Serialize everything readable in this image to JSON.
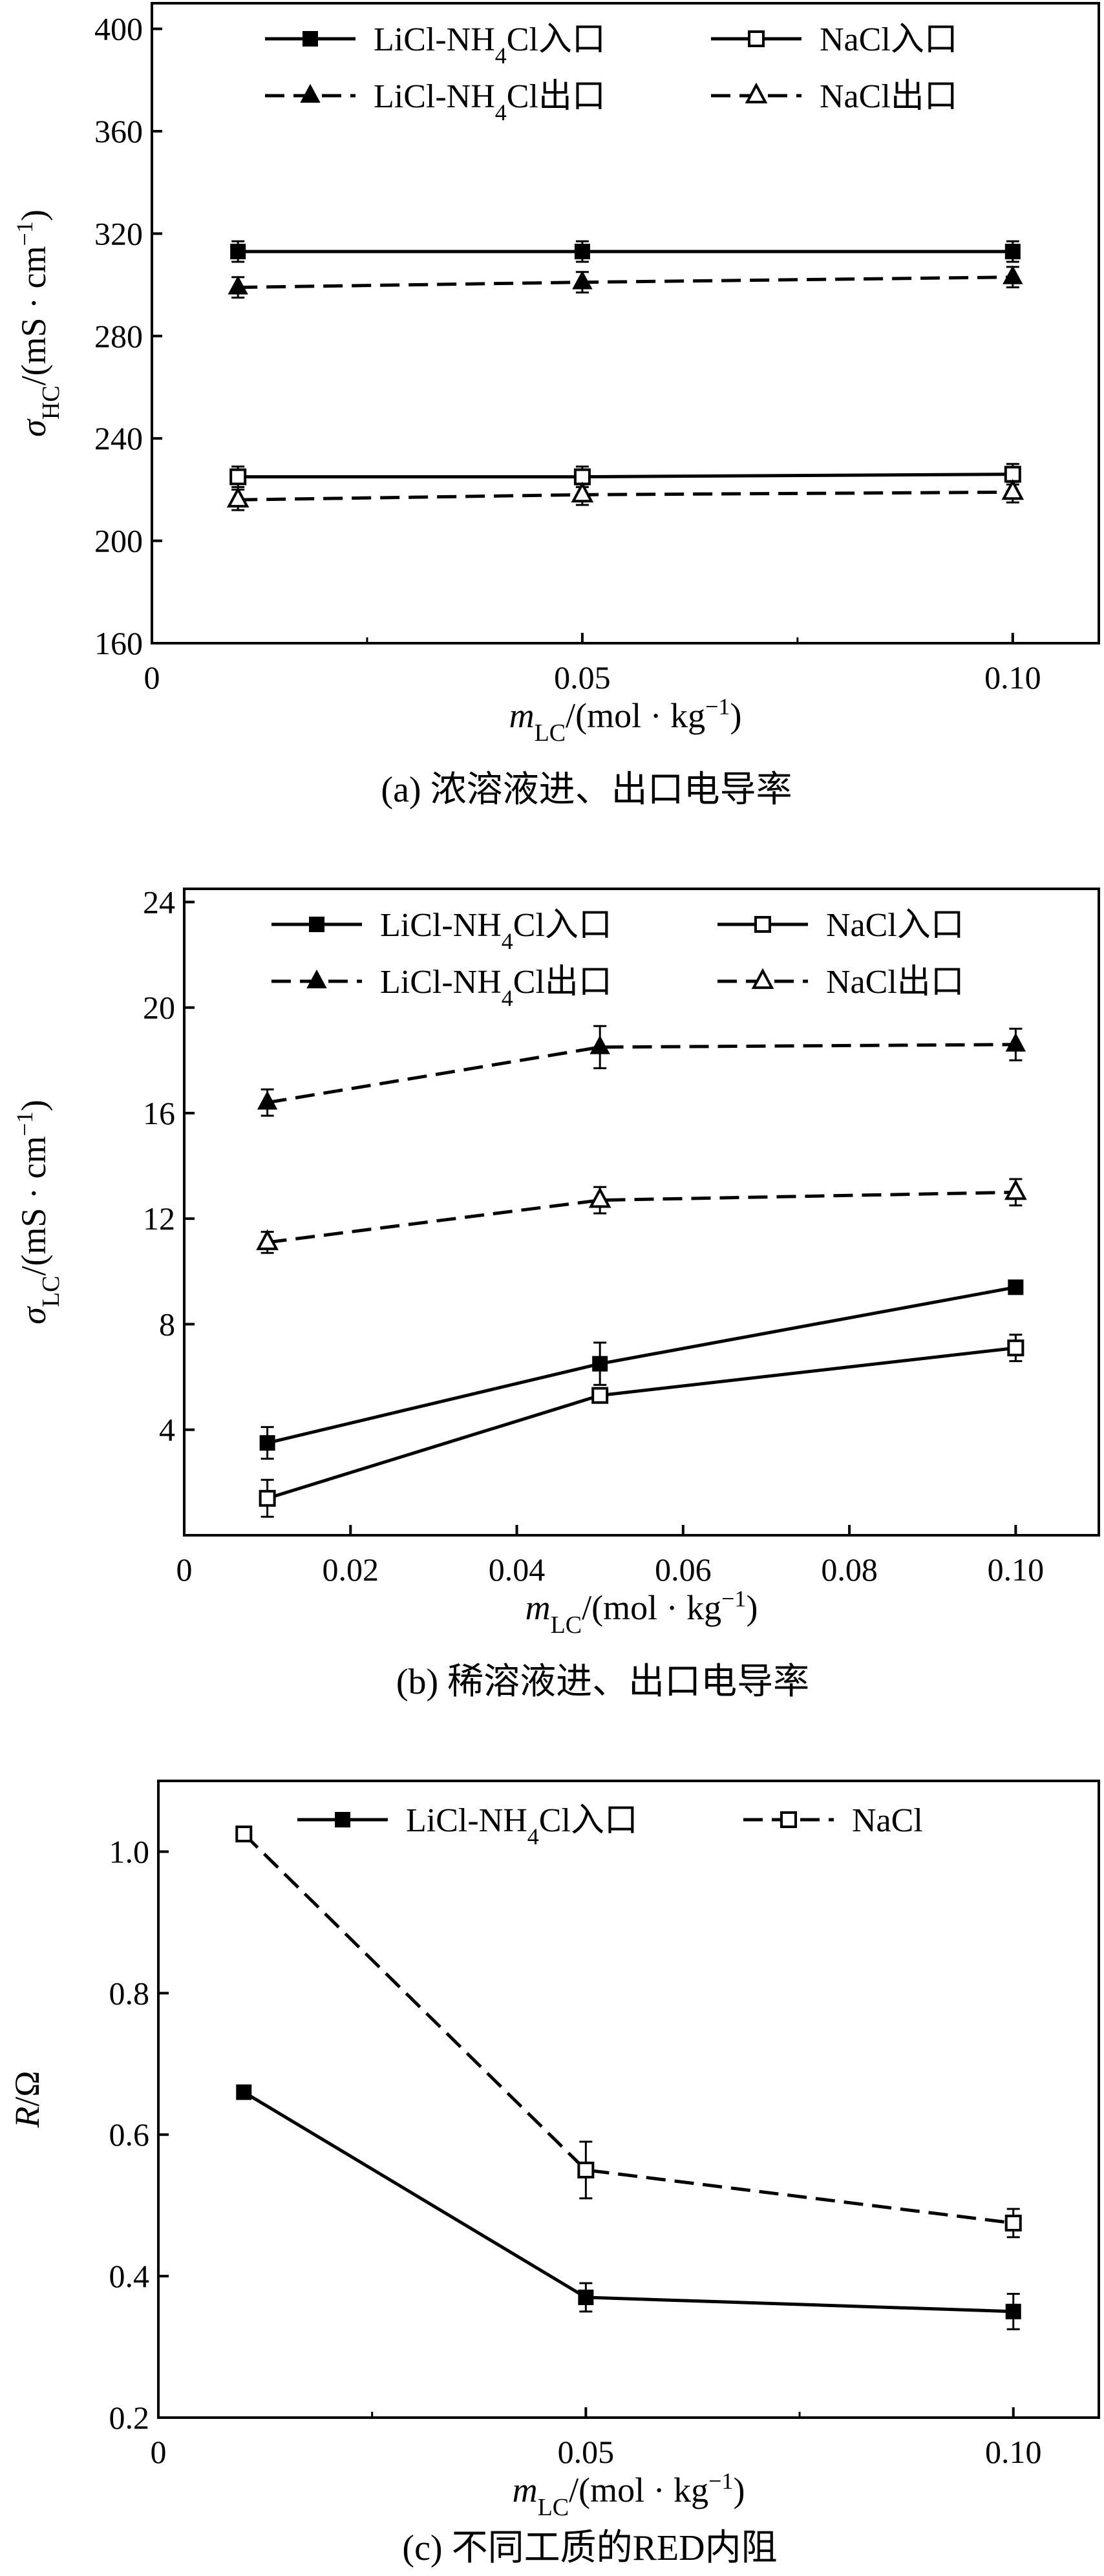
{
  "chart_data": [
    {
      "type": "line",
      "caption": "(a) 浓溶液进、出口电导率",
      "ylabel": "σHC/(mS · cm−1)",
      "ylabel_parts": [
        "σ",
        "HC",
        "/(mS · cm",
        "−1",
        ")"
      ],
      "xlabel": "mLC/(mol · kg−1)",
      "xlabel_parts": [
        "m",
        "LC",
        "/(mol · kg",
        "−1",
        ")"
      ],
      "xlim": [
        0,
        0.11
      ],
      "ylim": [
        160,
        410
      ],
      "x_ticks": [
        0,
        0.05,
        0.1
      ],
      "x_tick_labels": [
        "0",
        "0.05",
        "0.10"
      ],
      "y_ticks": [
        160,
        200,
        240,
        280,
        320,
        360,
        400
      ],
      "y_tick_labels": [
        "160",
        "200",
        "240",
        "280",
        "320",
        "360",
        "400"
      ],
      "series": [
        {
          "name": "LiCl-NH4Cl入口",
          "name_parts": [
            "LiCl-NH",
            "4",
            "Cl入口"
          ],
          "x": [
            0.01,
            0.05,
            0.1
          ],
          "y": [
            313,
            313,
            313
          ],
          "err": [
            4,
            4,
            4
          ],
          "line": "solid",
          "marker": "square-filled"
        },
        {
          "name": "NaCl入口",
          "name_parts": [
            "NaCl入口"
          ],
          "x": [
            0.01,
            0.05,
            0.1
          ],
          "y": [
            225,
            225,
            226
          ],
          "err": [
            4,
            4,
            4
          ],
          "line": "solid",
          "marker": "square-open"
        },
        {
          "name": "LiCl-NH4Cl出口",
          "name_parts": [
            "LiCl-NH",
            "4",
            "Cl出口"
          ],
          "x": [
            0.01,
            0.05,
            0.1
          ],
          "y": [
            299,
            301,
            303
          ],
          "err": [
            4,
            4,
            4
          ],
          "line": "dashed",
          "marker": "triangle-filled"
        },
        {
          "name": "NaCl出口",
          "name_parts": [
            "NaCl出口"
          ],
          "x": [
            0.01,
            0.05,
            0.1
          ],
          "y": [
            216,
            218,
            219
          ],
          "err": [
            4,
            4,
            4
          ],
          "line": "dashed",
          "marker": "triangle-open"
        }
      ],
      "legend": "top",
      "grid": false
    },
    {
      "type": "line",
      "caption": "(b) 稀溶液进、出口电导率",
      "ylabel": "σLC/(mS · cm−1)",
      "ylabel_parts": [
        "σ",
        "LC",
        "/(mS · cm",
        "−1",
        ")"
      ],
      "xlabel": "mLC/(mol · kg−1)",
      "xlabel_parts": [
        "m",
        "LC",
        "/(mol · kg",
        "−1",
        ")"
      ],
      "xlim": [
        0,
        0.11
      ],
      "ylim": [
        0,
        24.5
      ],
      "x_ticks": [
        0,
        0.02,
        0.04,
        0.06,
        0.08,
        0.1
      ],
      "x_tick_labels": [
        "0",
        "0.02",
        "0.04",
        "0.06",
        "0.08",
        "0.10"
      ],
      "y_ticks": [
        4,
        8,
        12,
        16,
        20,
        24
      ],
      "y_tick_labels": [
        "4",
        "8",
        "12",
        "16",
        "20",
        "24"
      ],
      "series": [
        {
          "name": "LiCl-NH4Cl入口",
          "name_parts": [
            "LiCl-NH",
            "4",
            "Cl入口"
          ],
          "x": [
            0.01,
            0.05,
            0.1
          ],
          "y": [
            3.5,
            6.5,
            9.4
          ],
          "err": [
            0.6,
            0.8,
            0.2
          ],
          "line": "solid",
          "marker": "square-filled"
        },
        {
          "name": "NaCl入口",
          "name_parts": [
            "NaCl入口"
          ],
          "x": [
            0.01,
            0.05,
            0.1
          ],
          "y": [
            1.4,
            5.3,
            7.1
          ],
          "err": [
            0.7,
            0.2,
            0.5
          ],
          "line": "solid",
          "marker": "square-open"
        },
        {
          "name": "LiCl-NH4Cl出口",
          "name_parts": [
            "LiCl-NH",
            "4",
            "Cl出口"
          ],
          "x": [
            0.01,
            0.05,
            0.1
          ],
          "y": [
            16.4,
            18.5,
            18.6
          ],
          "err": [
            0.5,
            0.8,
            0.6
          ],
          "line": "dashed",
          "marker": "triangle-filled"
        },
        {
          "name": "NaCl出口",
          "name_parts": [
            "NaCl出口"
          ],
          "x": [
            0.01,
            0.05,
            0.1
          ],
          "y": [
            11.1,
            12.7,
            13.0
          ],
          "err": [
            0.4,
            0.5,
            0.5
          ],
          "line": "dashed",
          "marker": "triangle-open"
        }
      ],
      "legend": "top",
      "grid": false
    },
    {
      "type": "line",
      "caption": "(c) 不同工质的RED内阻",
      "ylabel": "R/Ω",
      "ylabel_parts": [
        "R",
        "/Ω"
      ],
      "xlabel": "mLC/(mol · kg−1)",
      "xlabel_parts": [
        "m",
        "LC",
        "/(mol · kg",
        "−1",
        ")"
      ],
      "xlim": [
        0,
        0.11
      ],
      "ylim": [
        0.2,
        1.1
      ],
      "x_ticks": [
        0,
        0.05,
        0.1
      ],
      "x_tick_labels": [
        "0",
        "0.05",
        "0.10"
      ],
      "y_ticks": [
        0.2,
        0.4,
        0.6,
        0.8,
        1.0
      ],
      "y_tick_labels": [
        "0.2",
        "0.4",
        "0.6",
        "0.8",
        "1.0"
      ],
      "series": [
        {
          "name": "LiCl-NH4Cl入口",
          "name_parts": [
            "LiCl-NH",
            "4",
            "Cl入口"
          ],
          "x": [
            0.01,
            0.05,
            0.1
          ],
          "y": [
            0.66,
            0.37,
            0.35
          ],
          "err": [
            0.006,
            0.02,
            0.025
          ],
          "line": "solid",
          "marker": "square-filled"
        },
        {
          "name": "NaCl",
          "name_parts": [
            "NaCl"
          ],
          "x": [
            0.01,
            0.05,
            0.1
          ],
          "y": [
            1.025,
            0.55,
            0.475
          ],
          "err": [
            0.01,
            0.04,
            0.02
          ],
          "line": "dashed",
          "marker": "square-open"
        }
      ],
      "legend": "top",
      "grid": false
    }
  ]
}
